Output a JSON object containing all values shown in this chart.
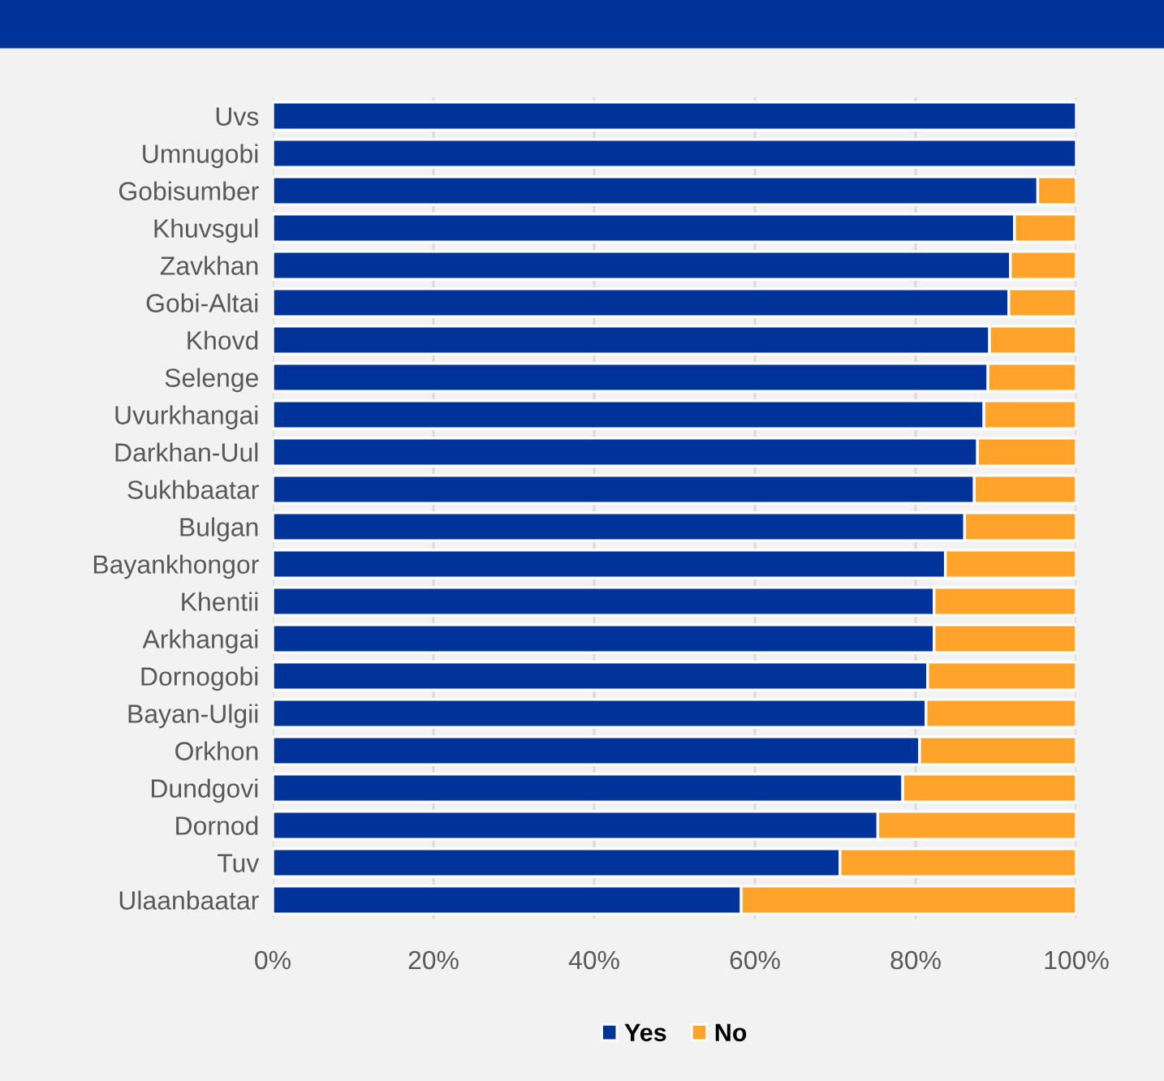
{
  "chart_data": {
    "type": "bar",
    "orientation": "horizontal",
    "stacked": true,
    "categories": [
      "Uvs",
      "Umnugobi",
      "Gobisumber",
      "Khuvsgul",
      "Zavkhan",
      "Gobi-Altai",
      "Khovd",
      "Selenge",
      "Uvurkhangai",
      "Darkhan-Uul",
      "Sukhbaatar",
      "Bulgan",
      "Bayankhongor",
      "Khentii",
      "Arkhangai",
      "Dornogobi",
      "Bayan-Ulgii",
      "Orkhon",
      "Dundgovi",
      "Dornod",
      "Tuv",
      "Ulaanbaatar"
    ],
    "series": [
      {
        "name": "Yes",
        "color": "#003399",
        "values": [
          100,
          100,
          95.2,
          92.3,
          91.8,
          91.6,
          89.2,
          89.0,
          88.5,
          87.7,
          87.3,
          86.1,
          83.7,
          82.3,
          82.3,
          81.5,
          81.3,
          80.5,
          78.4,
          75.3,
          70.6,
          58.3
        ]
      },
      {
        "name": "No",
        "color": "#ffa32a",
        "values": [
          0,
          0,
          4.8,
          7.7,
          8.2,
          8.4,
          10.8,
          11.0,
          11.5,
          12.3,
          12.7,
          13.9,
          16.3,
          17.7,
          17.7,
          18.5,
          18.7,
          19.5,
          21.6,
          24.7,
          29.4,
          41.7
        ]
      }
    ],
    "xlim": [
      0,
      100
    ],
    "xticks": [
      {
        "value": 0,
        "label": "0%"
      },
      {
        "value": 20,
        "label": "20%"
      },
      {
        "value": 40,
        "label": "40%"
      },
      {
        "value": 60,
        "label": "60%"
      },
      {
        "value": 80,
        "label": "80%"
      },
      {
        "value": 100,
        "label": "100%"
      }
    ],
    "grid": "x",
    "legend": "bottom"
  }
}
